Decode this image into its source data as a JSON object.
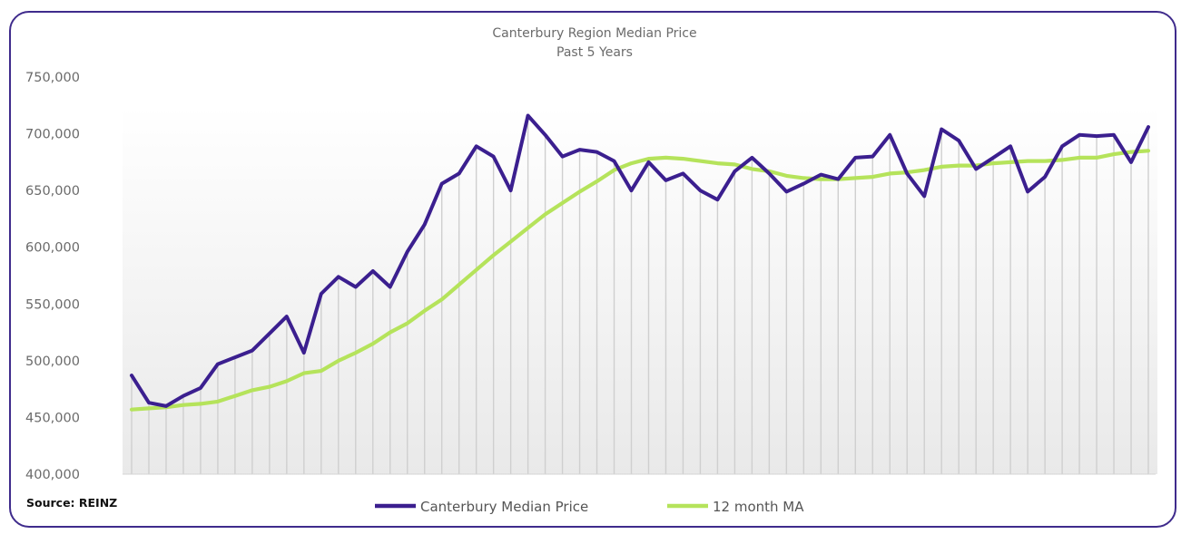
{
  "chart_data": {
    "type": "line",
    "title": "Canterbury Region Median Price",
    "subtitle": "Past 5 Years",
    "source": "Source: REINZ",
    "ylim": [
      400000,
      750000
    ],
    "yticks": [
      {
        "value": 750000,
        "label": "750,000"
      },
      {
        "value": 700000,
        "label": "700,000"
      },
      {
        "value": 650000,
        "label": "650,000"
      },
      {
        "value": 600000,
        "label": "600,000"
      },
      {
        "value": 550000,
        "label": "550,000"
      },
      {
        "value": 500000,
        "label": "500,000"
      },
      {
        "value": 450000,
        "label": "450,000"
      },
      {
        "value": 400000,
        "label": "400,000"
      }
    ],
    "xlabel": "",
    "ylabel": "",
    "grid": "vertical drop lines",
    "legend_position": "bottom",
    "series": [
      {
        "name": "Canterbury Median Price",
        "color": "#3b1f8f",
        "values": [
          487000,
          463000,
          460000,
          469000,
          476000,
          497000,
          503000,
          509000,
          524000,
          539000,
          507000,
          559000,
          574000,
          565000,
          579000,
          565000,
          596000,
          620000,
          656000,
          665000,
          689000,
          680000,
          650000,
          716000,
          699000,
          680000,
          686000,
          684000,
          676000,
          650000,
          675000,
          659000,
          665000,
          650000,
          642000,
          667000,
          679000,
          665000,
          649000,
          656000,
          664000,
          660000,
          679000,
          680000,
          699000,
          665000,
          645000,
          704000,
          694000,
          669000,
          679000,
          689000,
          649000,
          662000,
          689000,
          699000,
          698000,
          699000,
          675000,
          706000
        ]
      },
      {
        "name": "12 month MA",
        "color": "#b5e35b",
        "values": [
          457000,
          458000,
          459000,
          461000,
          462000,
          464000,
          469000,
          474000,
          477000,
          482000,
          489000,
          491000,
          500000,
          507000,
          515000,
          525000,
          533000,
          544000,
          554000,
          567000,
          580000,
          593000,
          605000,
          617000,
          629000,
          639000,
          649000,
          658000,
          668000,
          674000,
          678000,
          679000,
          678000,
          676000,
          674000,
          673000,
          669000,
          667000,
          663000,
          661000,
          660000,
          660000,
          661000,
          662000,
          665000,
          666000,
          668000,
          671000,
          672000,
          672000,
          674000,
          675000,
          676000,
          676000,
          677000,
          679000,
          679000,
          682000,
          684000,
          685000
        ]
      }
    ]
  }
}
